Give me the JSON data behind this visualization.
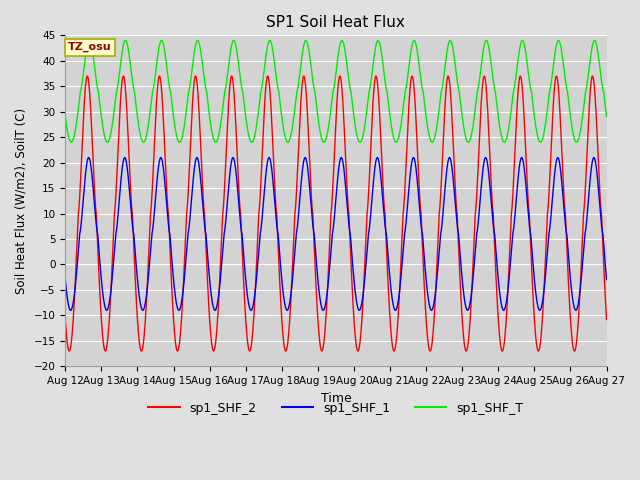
{
  "title": "SP1 Soil Heat Flux",
  "xlabel": "Time",
  "ylabel": "Soil Heat Flux (W/m2), SoilT (C)",
  "ylim": [
    -20,
    45
  ],
  "yticks": [
    -20,
    -15,
    -10,
    -5,
    0,
    5,
    10,
    15,
    20,
    25,
    30,
    35,
    40,
    45
  ],
  "xtick_labels": [
    "Aug 12",
    "Aug 13",
    "Aug 14",
    "Aug 15",
    "Aug 16",
    "Aug 17",
    "Aug 18",
    "Aug 19",
    "Aug 20",
    "Aug 21",
    "Aug 22",
    "Aug 23",
    "Aug 24",
    "Aug 25",
    "Aug 26",
    "Aug 27"
  ],
  "color_shf2": "#FF0000",
  "color_shf1": "#0000EE",
  "color_shft": "#00EE00",
  "legend_labels": [
    "sp1_SHF_2",
    "sp1_SHF_1",
    "sp1_SHF_T"
  ],
  "annotation_text": "TZ_osu",
  "annotation_color": "#990000",
  "annotation_bg": "#FFFFCC",
  "fig_bg_color": "#E0E0E0",
  "plot_bg_color": "#D3D3D3",
  "grid_color": "#FFFFFF"
}
